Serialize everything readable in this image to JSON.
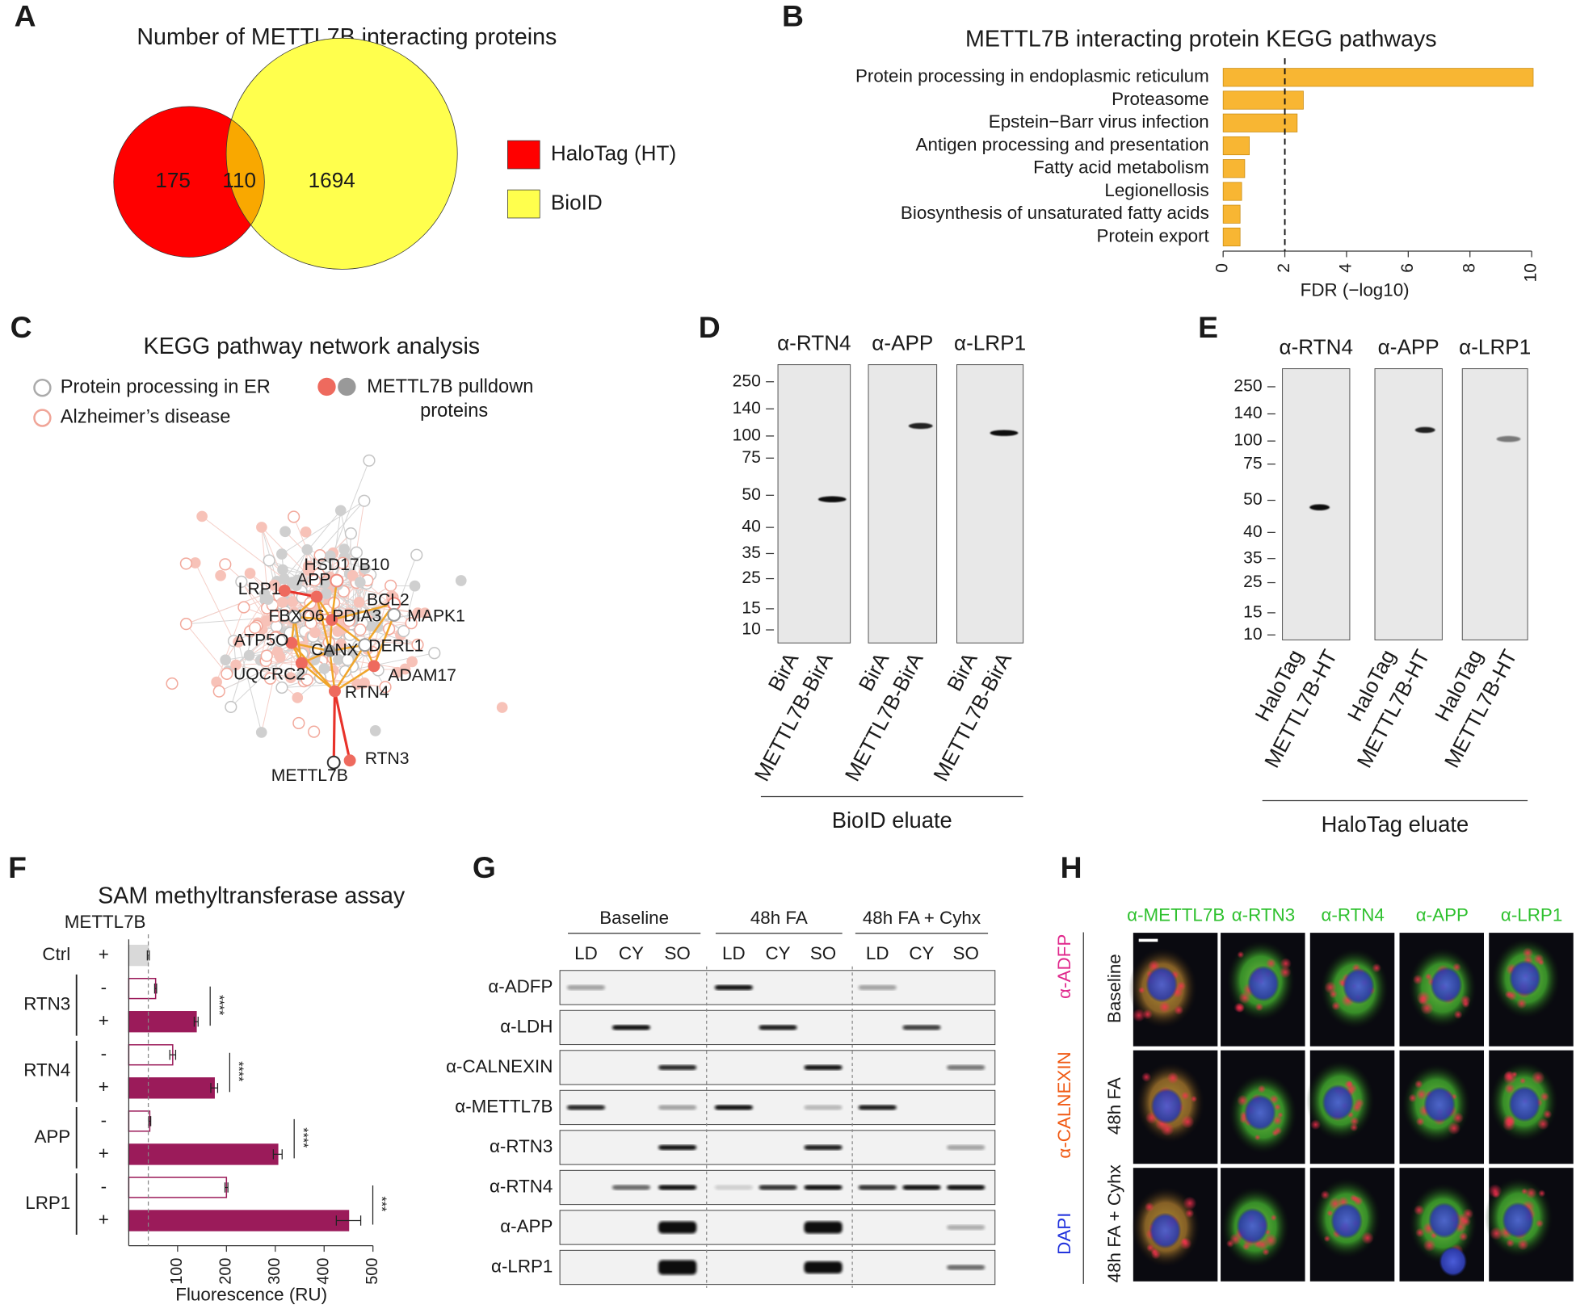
{
  "panel_letters": [
    "A",
    "B",
    "C",
    "D",
    "E",
    "F",
    "G",
    "H"
  ],
  "chart_data": [
    {
      "type": "venn",
      "title": "Number of METTL7B interacting proteins",
      "series": [
        {
          "name": "HaloTag (HT)",
          "color": "#ff0000"
        },
        {
          "name": "BioID",
          "color": "#ffff4d"
        }
      ],
      "values": [
        175,
        110,
        1694
      ],
      "overlap_color": "#f9a800"
    },
    {
      "type": "bar",
      "orientation": "horizontal",
      "title": "METTL7B interacting protein KEGG pathways",
      "categories": [
        "Protein processing in endoplasmic reticulum",
        "Proteasome",
        "Epstein−Barr virus infection",
        "Antigen processing and presentation",
        "Fatty acid metabolism",
        "Legionellosis",
        "Biosynthesis of unsaturated fatty acids",
        "Protein export"
      ],
      "values": [
        10.05,
        2.6,
        2.4,
        0.85,
        0.7,
        0.6,
        0.55,
        0.55
      ],
      "color": "#f8b633",
      "xlim": [
        0,
        10
      ],
      "xticks": [
        0,
        2,
        4,
        6,
        8,
        10
      ],
      "xlabel": "FDR (−log10)",
      "threshold": 2
    },
    {
      "type": "bar",
      "orientation": "horizontal",
      "title": "SAM methyltransferase assay",
      "group_header": "METTL7B",
      "groups": [
        {
          "name": "Ctrl",
          "signs": [
            "+"
          ],
          "values": [
            40
          ],
          "errors": [
            2
          ],
          "filled": [
            true
          ]
        },
        {
          "name": "RTN3",
          "signs": [
            "-",
            "+"
          ],
          "values": [
            55,
            138
          ],
          "errors": [
            2,
            4
          ],
          "filled": [
            false,
            true
          ],
          "significance": "****"
        },
        {
          "name": "RTN4",
          "signs": [
            "-",
            "+"
          ],
          "values": [
            90,
            175
          ],
          "errors": [
            6,
            7
          ],
          "filled": [
            false,
            true
          ],
          "significance": "****"
        },
        {
          "name": "APP",
          "signs": [
            "-",
            "+"
          ],
          "values": [
            43,
            305
          ],
          "errors": [
            2,
            9
          ],
          "filled": [
            false,
            true
          ],
          "significance": "****"
        },
        {
          "name": "LRP1",
          "signs": [
            "-",
            "+"
          ],
          "values": [
            200,
            450
          ],
          "errors": [
            3,
            25
          ],
          "filled": [
            false,
            true
          ],
          "significance": "***"
        }
      ],
      "color": "#9b1b5a",
      "ctrl_color": "#d9d9d9",
      "xlim": [
        0,
        500
      ],
      "xticks": [
        100,
        200,
        300,
        400,
        500
      ],
      "xlabel": "Fluorescence (RU)",
      "reference": 40
    }
  ],
  "network": {
    "title": "KEGG pathway network analysis",
    "legend": [
      "Protein processing in ER",
      "Alzheimer’s disease",
      "METTL7B pulldown proteins"
    ],
    "nodes": [
      "HSD17B10",
      "LRP1",
      "APP",
      "BCL2",
      "FBXO6",
      "PDIA3",
      "MAPK1",
      "ATP5O",
      "DERL1",
      "CANX",
      "UQCRC2",
      "ADAM17",
      "RTN4",
      "RTN3",
      "METTL7B"
    ]
  },
  "blot_d": {
    "antibodies": [
      "α-RTN4",
      "α-APP",
      "α-LRP1"
    ],
    "ladder": [
      250,
      140,
      100,
      75,
      50,
      40,
      35,
      25,
      15,
      10
    ],
    "lanes": [
      "BirA",
      "METTL7B-BirA"
    ],
    "footer": "BioID eluate"
  },
  "blot_e": {
    "antibodies": [
      "α-RTN4",
      "α-APP",
      "α-LRP1"
    ],
    "ladder": [
      250,
      140,
      100,
      75,
      50,
      40,
      35,
      25,
      15,
      10
    ],
    "lanes": [
      "HaloTag",
      "METTL7B-HT"
    ],
    "footer": "HaloTag eluate"
  },
  "blot_g": {
    "conditions": [
      "Baseline",
      "48h FA",
      "48h FA + Cyhx"
    ],
    "fractions": [
      "LD",
      "CY",
      "SO"
    ],
    "antibodies": [
      "α-ADFP",
      "α-LDH",
      "α-CALNEXIN",
      "α-METTL7B",
      "α-RTN3",
      "α-RTN4",
      "α-APP",
      "α-LRP1"
    ]
  },
  "imaging": {
    "columns": [
      "α-METTL7B",
      "α-RTN3",
      "α-RTN4",
      "α-APP",
      "α-LRP1"
    ],
    "rows": [
      "Baseline",
      "48h FA",
      "48h FA + Cyhx"
    ],
    "stains": [
      "DAPI",
      "α-CALNEXIN",
      "α-ADFP"
    ]
  }
}
